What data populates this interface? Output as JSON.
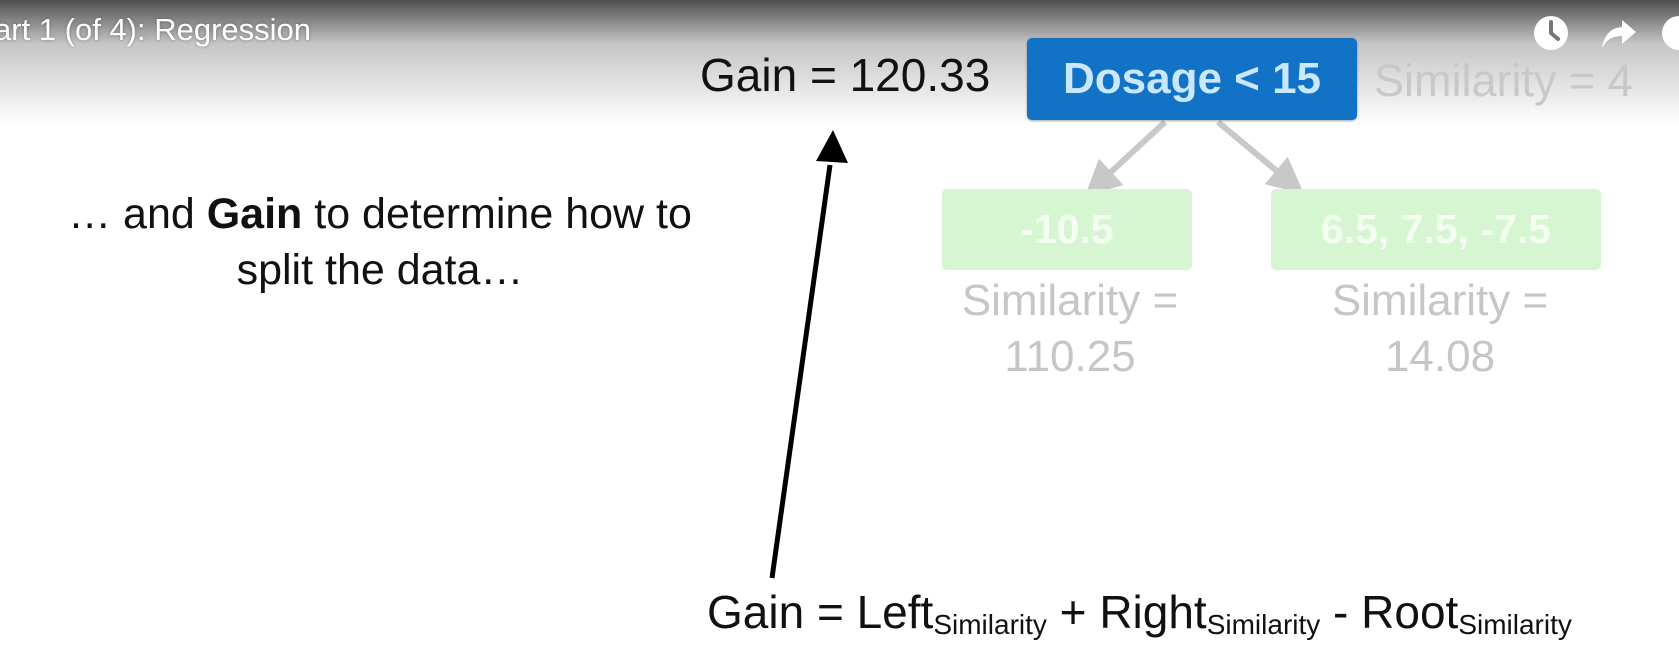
{
  "video": {
    "title": "art 1 (of 4): Regression",
    "icons": [
      "watch-later-icon",
      "share-icon",
      "info-icon"
    ]
  },
  "tree": {
    "gain_label": "Gain = 120.33",
    "root_label": "Dosage < 15",
    "root_similarity": "Similarity = 4",
    "left_leaf": "-10.5",
    "left_similarity_line1": "Similarity =",
    "left_similarity_line2": "110.25",
    "right_leaf": "6.5, 7.5, -7.5",
    "right_similarity_line1": "Similarity =",
    "right_similarity_line2": "14.08"
  },
  "narration": {
    "prefix": "… and ",
    "bold": "Gain",
    "suffix": " to determine how to",
    "line2": "split the data…"
  },
  "formula": {
    "gain": "Gain = Left",
    "sub1": "Similarity",
    "plus": " + Right",
    "sub2": "Similarity",
    "minus": " - Root",
    "sub3": "Similarity"
  },
  "colors": {
    "root_node": "#1172c6",
    "leaf_node": "#d6f5d1",
    "faded_text": "#c6c6c6",
    "arrow": "#000000",
    "faded_arrow": "#c8c8c8"
  }
}
